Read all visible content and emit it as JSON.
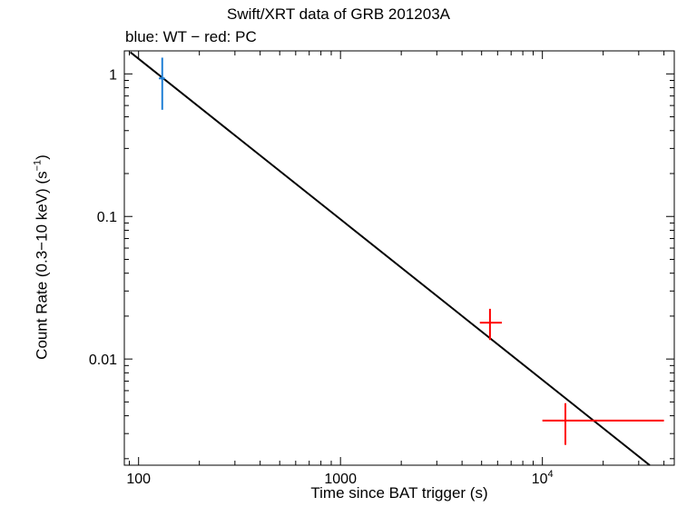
{
  "chart_data": {
    "type": "scatter",
    "title": "Swift/XRT data of GRB 201203A",
    "subtitle": "blue: WT − red: PC",
    "xlabel": "Time since BAT trigger (s)",
    "ylabel_main": "Count Rate (0.3−10 keV) (s",
    "ylabel_exp": "−1",
    "ylabel_close": ")",
    "xscale": "log",
    "yscale": "log",
    "xlim": [
      85,
      45000
    ],
    "ylim": [
      0.0018,
      1.45
    ],
    "x_ticks": [
      {
        "value": 100,
        "label": "100"
      },
      {
        "value": 1000,
        "label": "1000"
      },
      {
        "value": 10000,
        "label": "10",
        "exp": "4"
      }
    ],
    "y_ticks": [
      {
        "value": 1,
        "label": "1"
      },
      {
        "value": 0.1,
        "label": "0.1"
      },
      {
        "value": 0.01,
        "label": "0.01"
      }
    ],
    "series": [
      {
        "name": "WT",
        "color": "#1f7fd6",
        "points": [
          {
            "x": 131,
            "xerr": [
              126,
              135
            ],
            "y": 0.93,
            "yerr": [
              0.56,
              1.3
            ]
          }
        ]
      },
      {
        "name": "PC",
        "color": "#ff0000",
        "points": [
          {
            "x": 5500,
            "xerr": [
              4900,
              6300
            ],
            "y": 0.018,
            "yerr": [
              0.0136,
              0.0225
            ]
          },
          {
            "x": 13000,
            "xerr": [
              10000,
              40000
            ],
            "y": 0.0037,
            "yerr": [
              0.0025,
              0.0049
            ]
          }
        ]
      }
    ],
    "fit_line": {
      "color": "#000000",
      "points": [
        {
          "x": 91,
          "y": 1.42
        },
        {
          "x": 34000,
          "y": 0.0018
        }
      ]
    }
  }
}
